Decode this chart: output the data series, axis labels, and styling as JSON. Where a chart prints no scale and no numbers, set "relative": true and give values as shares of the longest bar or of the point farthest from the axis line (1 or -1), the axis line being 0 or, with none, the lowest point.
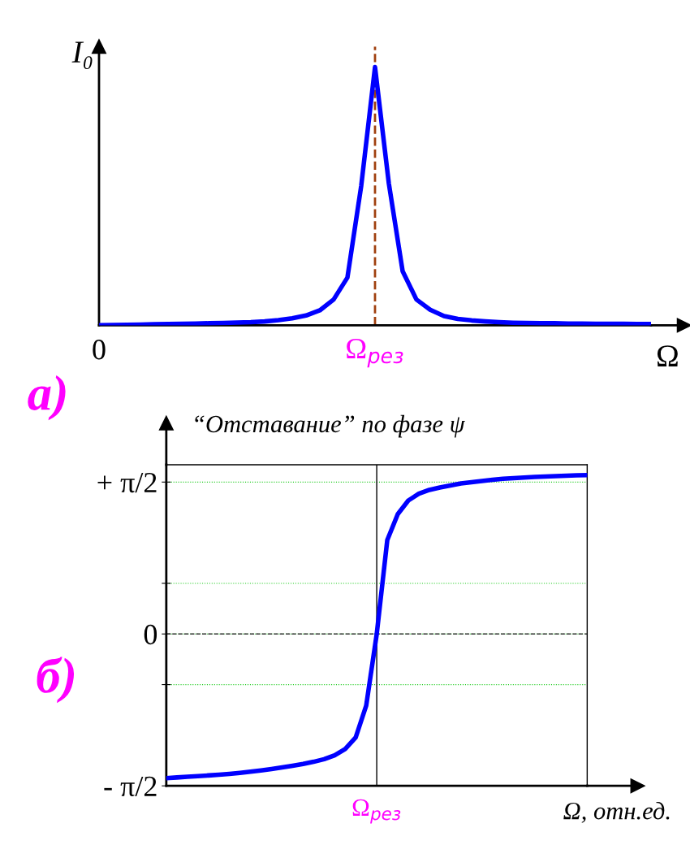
{
  "chart_data": [
    {
      "type": "line",
      "relative": true,
      "annotations": [
        "a)"
      ],
      "xlabel": "Ω",
      "ylabel": "I₀",
      "categories": [
        "0",
        null,
        null,
        null,
        null,
        null,
        null,
        null,
        null,
        null,
        null,
        null,
        null,
        null,
        null,
        null,
        null,
        null,
        null,
        null,
        "Ω$_{рез}$",
        null,
        null,
        null,
        null,
        null,
        null,
        null,
        null,
        null,
        null,
        null,
        null,
        null,
        null,
        null,
        null,
        null,
        null,
        null,
        null
      ],
      "series": [
        {
          "color": "#0000ff",
          "values": [
            0,
            0.001,
            0.002,
            0.003,
            0.004,
            0.005,
            0.006,
            0.007,
            0.008,
            0.009,
            0.011,
            0.012,
            0.015,
            0.02,
            0.027,
            0.038,
            0.058,
            0.1,
            0.185,
            0.54,
            1,
            0.55,
            0.21,
            0.1,
            0.06,
            0.036,
            0.025,
            0.019,
            0.015,
            0.012,
            0.01,
            0.009,
            0.008,
            0.008,
            0.007,
            0.007,
            0.006,
            0.006,
            0.006,
            0.005,
            0.005
          ]
        }
      ],
      "ref_lines": [
        {
          "axis": "x",
          "value": "Ω$_{рез}$",
          "color": "#a0400f",
          "line_style": "dashed"
        }
      ],
      "grid": false,
      "marker": "none",
      "line_style": "solid"
    },
    {
      "type": "line",
      "annotations": [
        "б)"
      ],
      "xlabel": "Ω, отн.ед.",
      "ylabel": "“Отставание” по фазе ψ",
      "ylim": [
        -1.5708,
        1.75
      ],
      "yticks": [
        {
          "value": -1.5708,
          "label": "- π/2"
        },
        {
          "value": -0.5236,
          "label": null
        },
        {
          "value": 0,
          "label": "0"
        },
        {
          "value": 0.5236,
          "label": null
        },
        {
          "value": 1.5708,
          "label": "+ π/2"
        }
      ],
      "categories": [
        null,
        null,
        null,
        null,
        null,
        null,
        null,
        null,
        null,
        null,
        null,
        null,
        null,
        null,
        null,
        null,
        null,
        null,
        null,
        null,
        "Ω$_{рез}$",
        null,
        null,
        null,
        null,
        null,
        null,
        null,
        null,
        null,
        null,
        null,
        null,
        null,
        null,
        null,
        null,
        null,
        null,
        null,
        null
      ],
      "series": [
        {
          "color": "#0000ff",
          "values": [
            -1.491,
            -1.484,
            -1.477,
            -1.47,
            -1.463,
            -1.455,
            -1.447,
            -1.437,
            -1.425,
            -1.412,
            -1.397,
            -1.38,
            -1.363,
            -1.345,
            -1.322,
            -1.295,
            -1.255,
            -1.19,
            -1.07,
            -0.74,
            0,
            0.97,
            1.24,
            1.38,
            1.45,
            1.49,
            1.515,
            1.535,
            1.557,
            1.57,
            1.582,
            1.594,
            1.605,
            1.612,
            1.618,
            1.624,
            1.628,
            1.633,
            1.637,
            1.64,
            1.643
          ]
        }
      ],
      "ref_lines": [
        {
          "axis": "y",
          "value": 0,
          "color": "#333333",
          "line_style": "dashed"
        },
        {
          "axis": "x",
          "value": "Ω$_{рез}$",
          "color": "#000000",
          "line_style": "solid"
        }
      ],
      "grid": "y",
      "marker": "none",
      "line_style": "solid"
    }
  ]
}
